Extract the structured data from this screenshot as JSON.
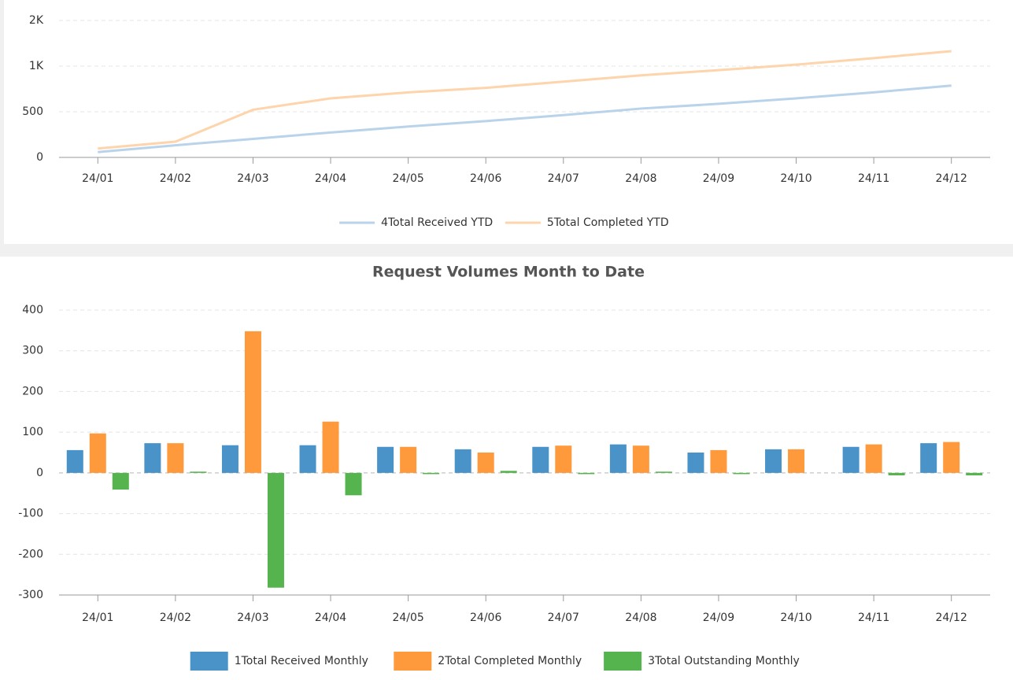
{
  "chart_data": [
    {
      "type": "line",
      "categories": [
        "24/01",
        "24/02",
        "24/03",
        "24/04",
        "24/05",
        "24/06",
        "24/07",
        "24/08",
        "24/09",
        "24/10",
        "24/11",
        "24/12"
      ],
      "series": [
        {
          "name": "4Total Received YTD",
          "color": "#b9d3ea",
          "values": [
            58,
            133,
            203,
            273,
            338,
            398,
            463,
            535,
            587,
            647,
            712,
            787
          ]
        },
        {
          "name": "5Total Completed YTD",
          "color": "#fdd4ab",
          "values": [
            97,
            172,
            522,
            647,
            712,
            762,
            830,
            899,
            956,
            1016,
            1087,
            1164
          ]
        }
      ],
      "ylim": [
        0,
        1500
      ],
      "yticks": [
        0,
        500,
        {
          "value": 1000,
          "label": "1K"
        },
        {
          "value": 1500,
          "label": "2K"
        }
      ],
      "grid": true,
      "legend": "bottom"
    },
    {
      "type": "bar",
      "title": "Request Volumes Month to Date",
      "categories": [
        "24/01",
        "24/02",
        "24/03",
        "24/04",
        "24/05",
        "24/06",
        "24/07",
        "24/08",
        "24/09",
        "24/10",
        "24/11",
        "24/12"
      ],
      "series": [
        {
          "name": "1Total Received Monthly",
          "color": "#4a93c8",
          "values": [
            56,
            73,
            68,
            68,
            64,
            58,
            64,
            70,
            50,
            58,
            64,
            73
          ]
        },
        {
          "name": "2Total Completed Monthly",
          "color": "#ff9a3c",
          "values": [
            97,
            73,
            348,
            126,
            64,
            50,
            67,
            67,
            56,
            58,
            70,
            76
          ]
        },
        {
          "name": "3Total Outstanding Monthly",
          "color": "#56b44f",
          "values": [
            -41,
            3,
            -282,
            -55,
            -3,
            5,
            -3,
            3,
            -3,
            0,
            -6,
            -6
          ]
        }
      ],
      "ylim": [
        -300,
        400
      ],
      "yticks": [
        -300,
        -200,
        -100,
        0,
        100,
        200,
        300,
        400
      ],
      "grid": true,
      "legend": "bottom"
    }
  ]
}
